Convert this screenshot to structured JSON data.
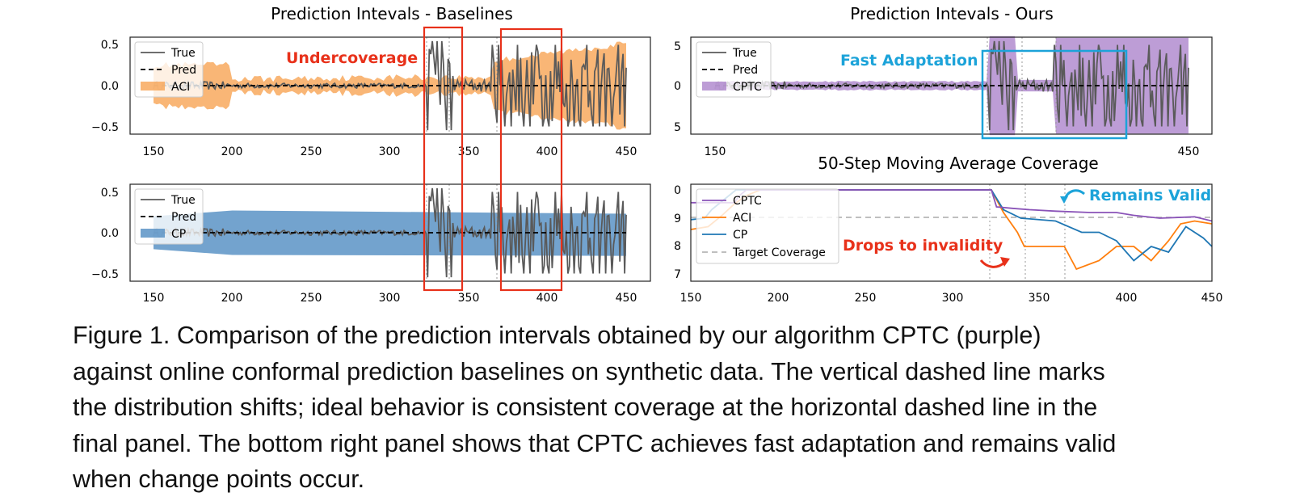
{
  "caption_lines": [
    "Figure 1. Comparison of the prediction intervals obtained by our algorithm CPTC (purple)",
    "against online conformal prediction baselines on synthetic data. The vertical dashed line marks",
    "the distribution shifts; ideal behavior is consistent coverage at the horizontal dashed line in the",
    "final panel. The bottom right panel shows that CPTC achieves fast adaptation and remains valid",
    "when change points occur."
  ],
  "chart_data": [
    {
      "id": "baseline_aci",
      "type": "line",
      "title": "Prediction Intevals - Baselines",
      "x_ticks": [
        "150",
        "200",
        "250",
        "300",
        "350",
        "400",
        "450"
      ],
      "y_ticks": [
        "0.5",
        "0.0",
        "−0.5"
      ],
      "xlim": [
        140,
        460
      ],
      "ylim": [
        -0.6,
        0.6
      ],
      "legend": [
        "True",
        "Pred",
        "ACI"
      ],
      "interval_color": "#f8a95e",
      "change_points": [
        324,
        341,
        365
      ],
      "annotation": "Undercoverage",
      "annotation_color": "#e8311a"
    },
    {
      "id": "baseline_cp",
      "type": "line",
      "title": "",
      "x_ticks": [
        "150",
        "200",
        "250",
        "300",
        "350",
        "400",
        "450"
      ],
      "y_ticks": [
        "0.5",
        "0.0",
        "−0.5"
      ],
      "xlim": [
        140,
        460
      ],
      "ylim": [
        -0.6,
        0.6
      ],
      "legend": [
        "True",
        "Pred",
        "CP"
      ],
      "interval_color": "#5b93c5",
      "change_points": [
        324,
        341,
        365
      ]
    },
    {
      "id": "ours_cptc",
      "type": "line",
      "title": "Prediction Intevals - Ours",
      "x_ticks": [
        "150",
        "450"
      ],
      "y_ticks": [
        "5",
        "0",
        "5"
      ],
      "xlim": [
        140,
        460
      ],
      "ylim": [
        -0.6,
        0.6
      ],
      "legend": [
        "True",
        "Pred",
        "CPTC"
      ],
      "interval_color": "#a77cc8",
      "change_points": [
        324,
        341,
        365
      ],
      "annotation": "Fast Adaptation",
      "annotation_color": "#1ca3d9"
    },
    {
      "id": "coverage",
      "type": "line",
      "title": "50-Step Moving Average Coverage",
      "x_ticks": [
        "150",
        "200",
        "250",
        "300",
        "350",
        "400",
        "450"
      ],
      "y_ticks": [
        "0",
        "9",
        "8",
        "7"
      ],
      "xlim": [
        150,
        450
      ],
      "legend": [
        "CPTC",
        "ACI",
        "CP",
        "Target Coverage"
      ],
      "series": [
        {
          "name": "CPTC",
          "color": "#8a53b8",
          "points": [
            [
              150,
              0.955
            ],
            [
              175,
              0.955
            ],
            [
              178,
              0.98
            ],
            [
              182,
              1.0
            ],
            [
              323,
              1.0
            ],
            [
              326,
              0.94
            ],
            [
              335,
              0.935
            ],
            [
              345,
              0.93
            ],
            [
              360,
              0.925
            ],
            [
              380,
              0.92
            ],
            [
              395,
              0.92
            ],
            [
              405,
              0.91
            ],
            [
              420,
              0.9
            ],
            [
              440,
              0.905
            ],
            [
              450,
              0.89
            ]
          ]
        },
        {
          "name": "ACI",
          "color": "#ff7f0e",
          "points": [
            [
              150,
              0.86
            ],
            [
              160,
              0.87
            ],
            [
              168,
              0.91
            ],
            [
              175,
              0.95
            ],
            [
              182,
              0.98
            ],
            [
              190,
              1.0
            ],
            [
              323,
              1.0
            ],
            [
              330,
              0.92
            ],
            [
              338,
              0.85
            ],
            [
              342,
              0.8
            ],
            [
              350,
              0.8
            ],
            [
              365,
              0.8
            ],
            [
              372,
              0.72
            ],
            [
              385,
              0.75
            ],
            [
              395,
              0.8
            ],
            [
              405,
              0.8
            ],
            [
              415,
              0.75
            ],
            [
              425,
              0.82
            ],
            [
              432,
              0.88
            ],
            [
              440,
              0.89
            ],
            [
              450,
              0.88
            ]
          ]
        },
        {
          "name": "CP",
          "color": "#1f77b4",
          "points": [
            [
              150,
              0.895
            ],
            [
              158,
              0.9
            ],
            [
              162,
              0.93
            ],
            [
              168,
              0.96
            ],
            [
              172,
              0.98
            ],
            [
              176,
              1.0
            ],
            [
              323,
              1.0
            ],
            [
              330,
              0.93
            ],
            [
              340,
              0.9
            ],
            [
              360,
              0.89
            ],
            [
              375,
              0.85
            ],
            [
              385,
              0.85
            ],
            [
              395,
              0.82
            ],
            [
              405,
              0.75
            ],
            [
              415,
              0.8
            ],
            [
              425,
              0.78
            ],
            [
              435,
              0.87
            ],
            [
              445,
              0.83
            ],
            [
              450,
              0.8
            ]
          ]
        }
      ],
      "target": 0.9,
      "change_points": [
        324,
        341,
        365
      ],
      "annotation_valid": "Remains Valid",
      "annotation_invalid": "Drops to invalidity",
      "valid_color": "#1ca3d9",
      "invalid_color": "#e8311a"
    }
  ],
  "colors": {
    "true_series": "#5a5a5a",
    "highlight_box": "#e8311a",
    "fast_box": "#1ca3d9"
  }
}
